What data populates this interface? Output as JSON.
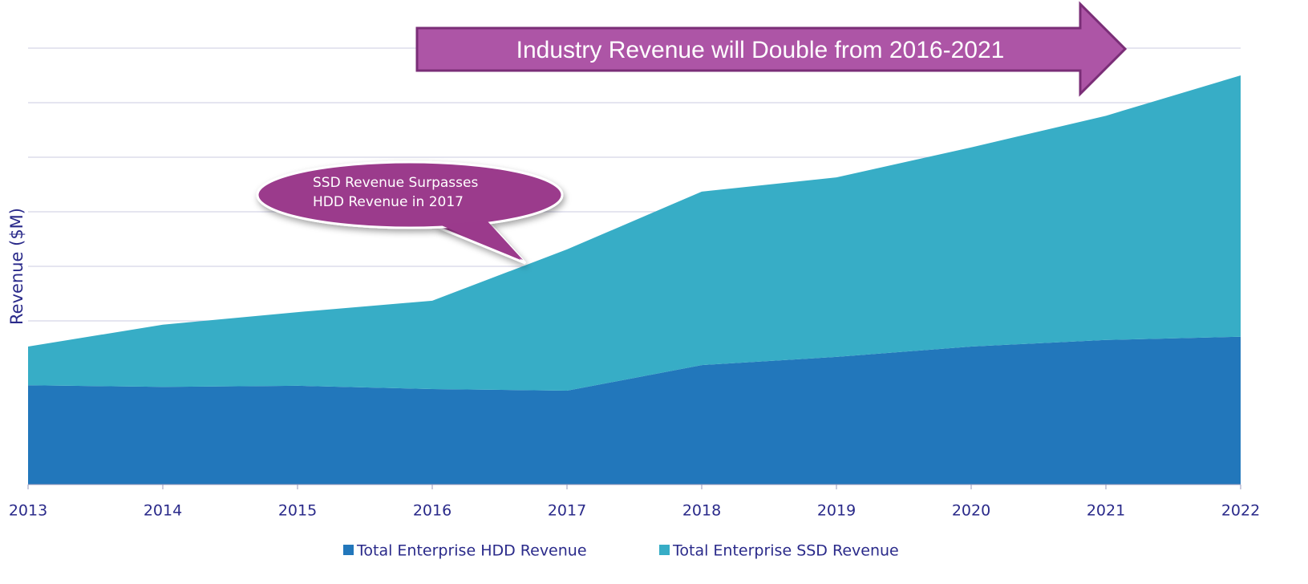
{
  "chart_data": {
    "type": "stacked_area",
    "y_label": "Revenue ($M)",
    "x": [
      2013,
      2014,
      2015,
      2016,
      2017,
      2018,
      2019,
      2020,
      2021,
      2022
    ],
    "xlim": [
      2013,
      2022
    ],
    "xticks": [
      2013,
      2014,
      2015,
      2016,
      2017,
      2018,
      2019,
      2020,
      2021,
      2022
    ],
    "ylim": [
      0,
      8
    ],
    "yticks": [
      1,
      2,
      3,
      4,
      5,
      6,
      7,
      8
    ],
    "grid": true,
    "legend": "bottom",
    "series": [
      {
        "name": "Total Enterprise HDD Revenue",
        "color": "#2277bb",
        "values": [
          1.82,
          1.79,
          1.81,
          1.75,
          1.72,
          2.19,
          2.34,
          2.53,
          2.65,
          2.71
        ]
      },
      {
        "name": "Total Enterprise SSD Revenue",
        "color": "#37adc6",
        "values": [
          0.71,
          1.14,
          1.35,
          1.62,
          2.59,
          3.18,
          3.29,
          3.65,
          4.11,
          4.79
        ]
      }
    ],
    "arrow_annotation": "Industry Revenue will Double from 2016-2021",
    "callout_annotation": [
      "SSD Revenue Surpasses",
      "HDD Revenue in 2017"
    ]
  }
}
